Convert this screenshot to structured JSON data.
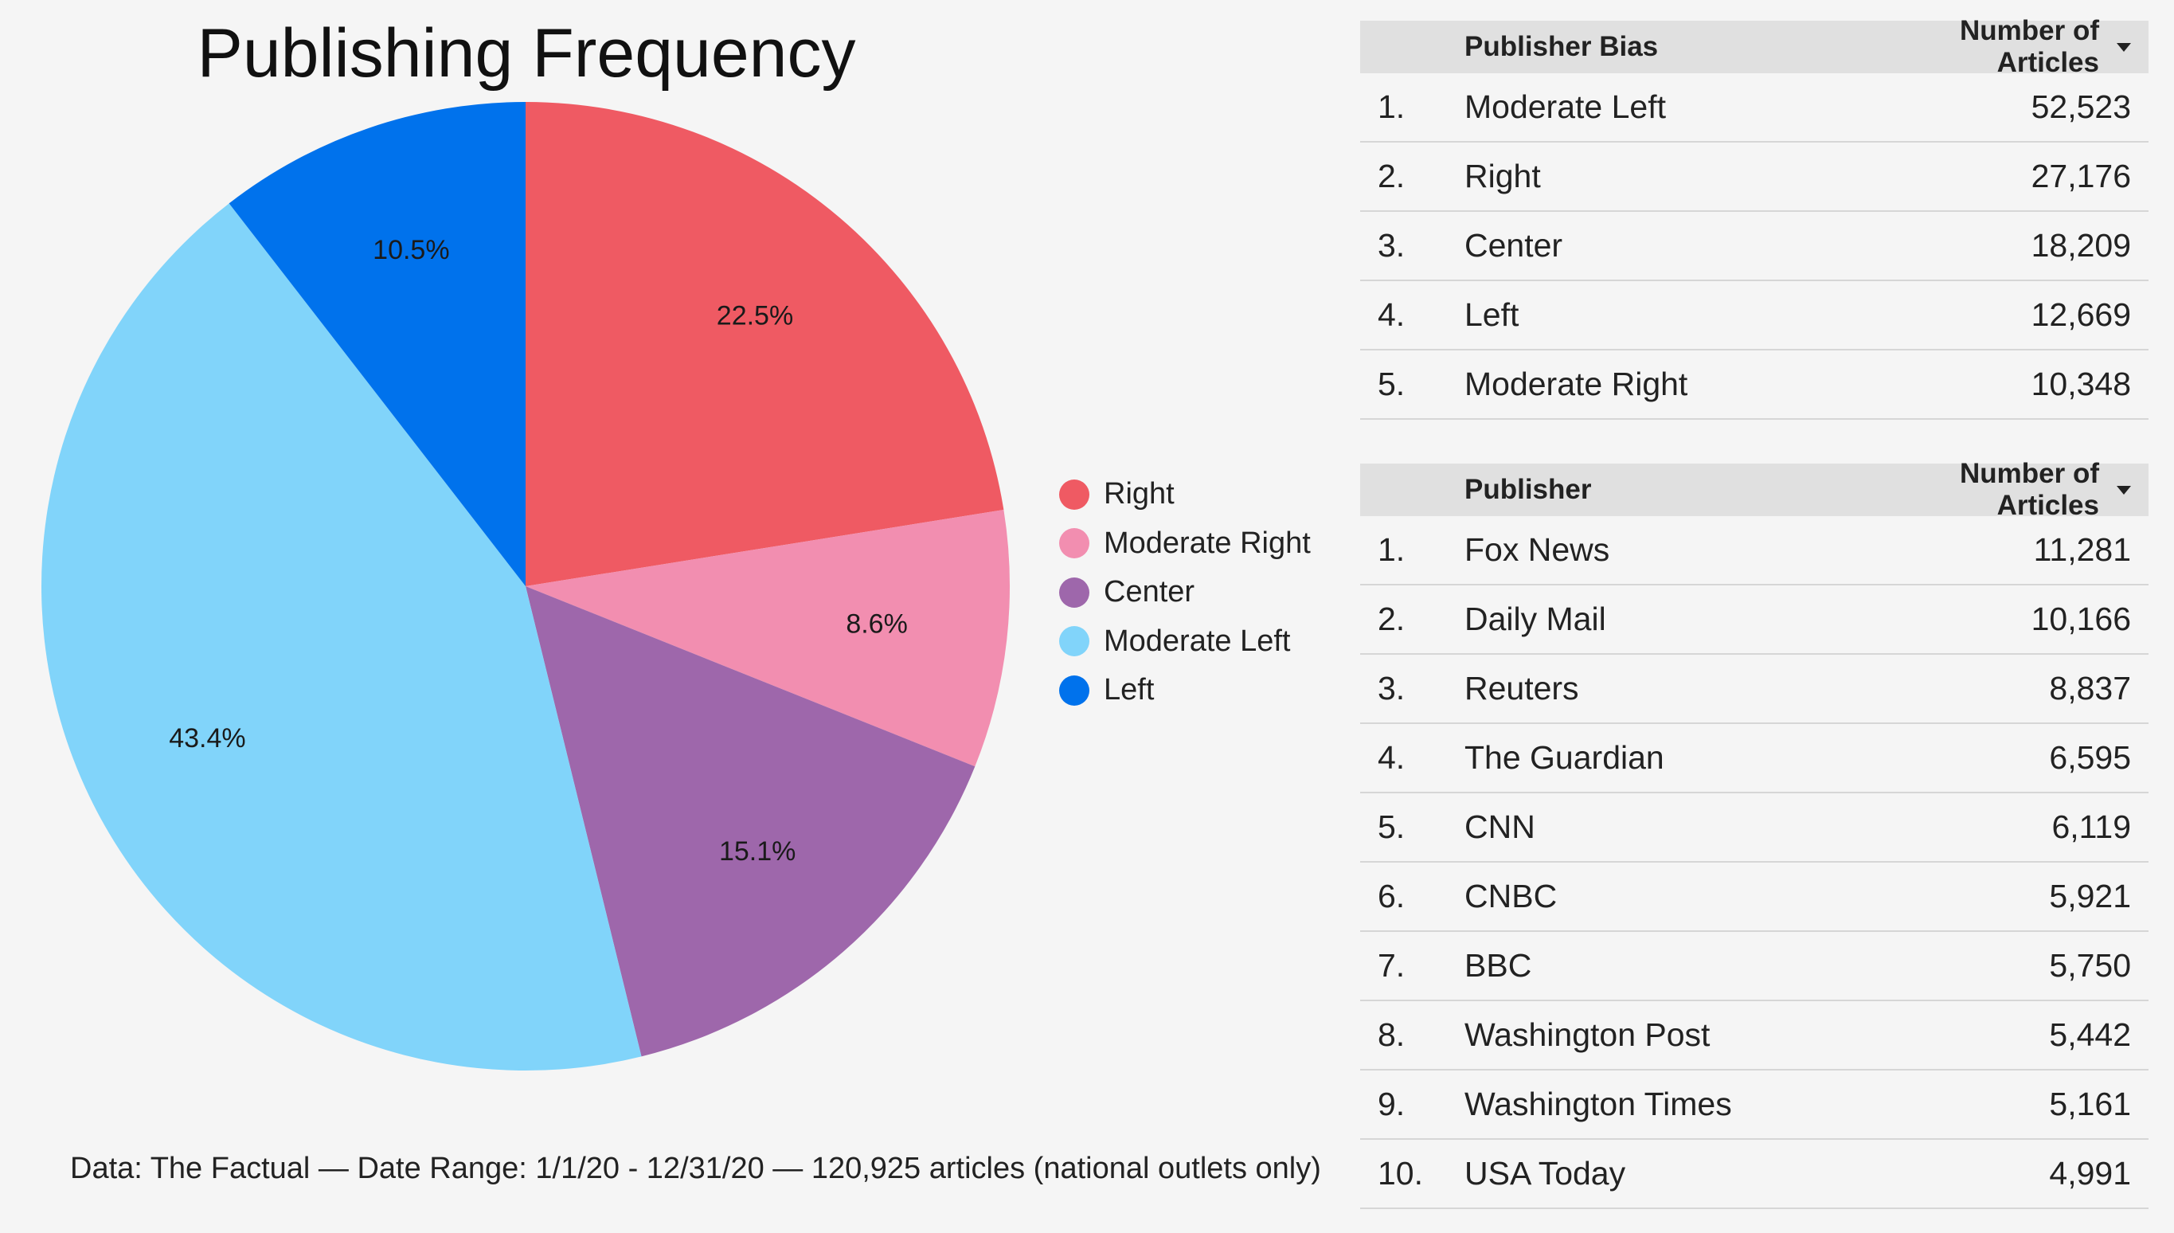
{
  "title": "Publishing Frequency",
  "footer": "Data: The Factual  —  Date Range: 1/1/20 - 12/31/20  —  120,925 articles (national outlets only)",
  "chart_data": {
    "type": "pie",
    "title": "Publishing Frequency",
    "slices": [
      {
        "name": "Right",
        "value": 22.5,
        "label": "22.5%",
        "color": "#ef5a63"
      },
      {
        "name": "Moderate Right",
        "value": 8.6,
        "label": "8.6%",
        "color": "#f28eb0"
      },
      {
        "name": "Center",
        "value": 15.1,
        "label": "15.1%",
        "color": "#9e67ab"
      },
      {
        "name": "Moderate Left",
        "value": 43.4,
        "label": "43.4%",
        "color": "#81d4fa"
      },
      {
        "name": "Left",
        "value": 10.5,
        "label": "10.5%",
        "color": "#0072ec"
      }
    ],
    "legend_position": "right"
  },
  "bias_table": {
    "headers": {
      "name": "Publisher Bias",
      "value": "Number of Articles"
    },
    "sort_icon": "sort-down-icon",
    "rows": [
      {
        "rank": "1.",
        "name": "Moderate Left",
        "value": "52,523"
      },
      {
        "rank": "2.",
        "name": "Right",
        "value": "27,176"
      },
      {
        "rank": "3.",
        "name": "Center",
        "value": "18,209"
      },
      {
        "rank": "4.",
        "name": "Left",
        "value": "12,669"
      },
      {
        "rank": "5.",
        "name": "Moderate Right",
        "value": "10,348"
      }
    ]
  },
  "publisher_table": {
    "headers": {
      "name": "Publisher",
      "value": "Number of Articles"
    },
    "sort_icon": "sort-down-icon",
    "rows": [
      {
        "rank": "1.",
        "name": "Fox News",
        "value": "11,281"
      },
      {
        "rank": "2.",
        "name": "Daily Mail",
        "value": "10,166"
      },
      {
        "rank": "3.",
        "name": "Reuters",
        "value": "8,837"
      },
      {
        "rank": "4.",
        "name": "The Guardian",
        "value": "6,595"
      },
      {
        "rank": "5.",
        "name": "CNN",
        "value": "6,119"
      },
      {
        "rank": "6.",
        "name": "CNBC",
        "value": "5,921"
      },
      {
        "rank": "7.",
        "name": "BBC",
        "value": "5,750"
      },
      {
        "rank": "8.",
        "name": "Washington Post",
        "value": "5,442"
      },
      {
        "rank": "9.",
        "name": "Washington Times",
        "value": "5,161"
      },
      {
        "rank": "10.",
        "name": "USA Today",
        "value": "4,991"
      }
    ]
  }
}
